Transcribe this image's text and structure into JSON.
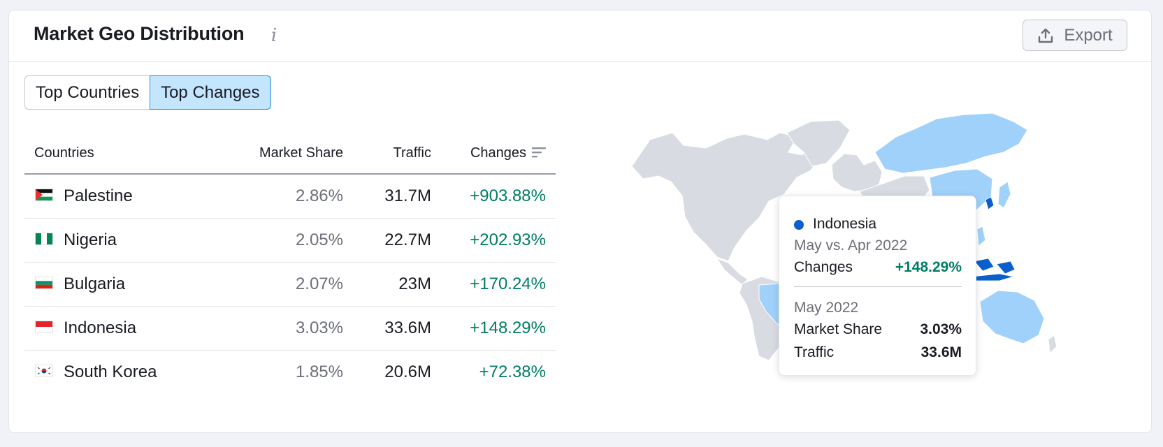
{
  "widget": {
    "title": "Market Geo Distribution",
    "info_icon": "info-icon",
    "export_label": "Export",
    "export_icon": "upload-icon"
  },
  "tabs": [
    {
      "label": "Top Countries",
      "active": false
    },
    {
      "label": "Top Changes",
      "active": true
    }
  ],
  "table": {
    "headers": {
      "country": "Countries",
      "market_share": "Market Share",
      "traffic": "Traffic",
      "changes": "Changes"
    },
    "sort_icon": "sort-descending-icon",
    "rows": [
      {
        "country": "Palestine",
        "market_share": "2.86%",
        "traffic": "31.7M",
        "changes": "+903.88%"
      },
      {
        "country": "Nigeria",
        "market_share": "2.05%",
        "traffic": "22.7M",
        "changes": "+202.93%"
      },
      {
        "country": "Bulgaria",
        "market_share": "2.07%",
        "traffic": "23M",
        "changes": "+170.24%"
      },
      {
        "country": "Indonesia",
        "market_share": "3.03%",
        "traffic": "33.6M",
        "changes": "+148.29%"
      },
      {
        "country": "South Korea",
        "market_share": "1.85%",
        "traffic": "20.6M",
        "changes": "+72.38%"
      }
    ]
  },
  "tooltip": {
    "country": "Indonesia",
    "comparison": "May vs. Apr 2022",
    "changes_label": "Changes",
    "changes_value": "+148.29%",
    "period": "May 2022",
    "market_share_label": "Market Share",
    "market_share_value": "3.03%",
    "traffic_label": "Traffic",
    "traffic_value": "33.6M"
  },
  "colors": {
    "accent_blue": "#0b5fcc",
    "highlight_light_blue": "#9fd1fb",
    "land_gray": "#d9dbe3",
    "positive_green": "#007c65",
    "tab_active_bg": "#c4e5fe"
  }
}
